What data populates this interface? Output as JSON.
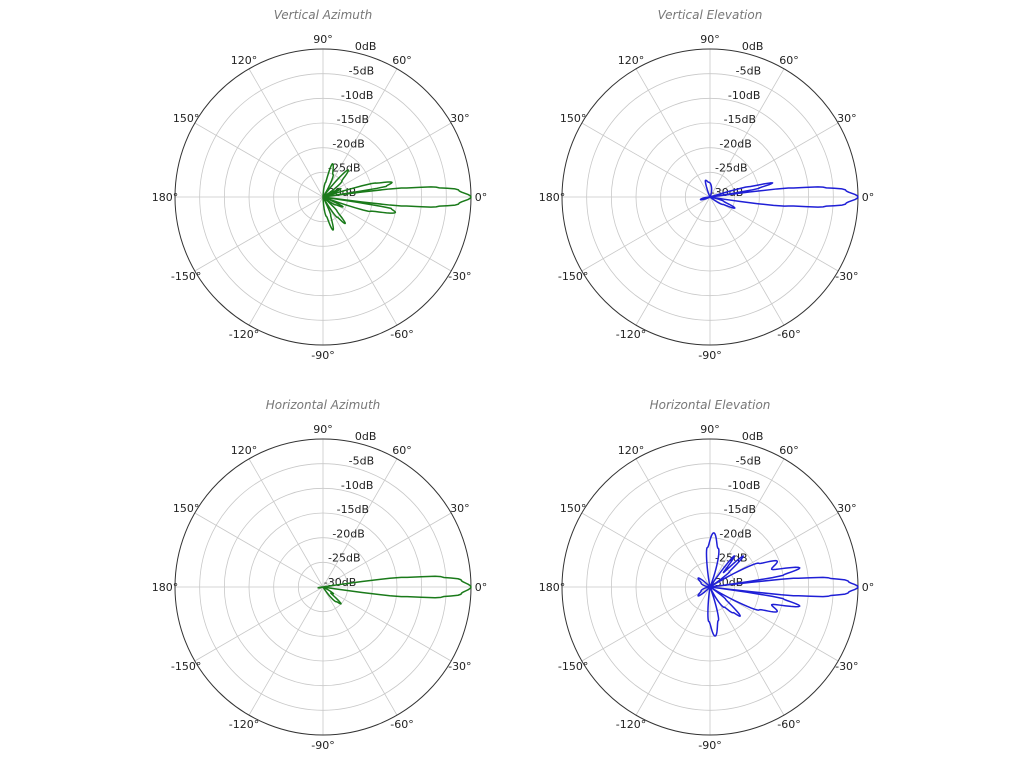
{
  "chart_data": [
    {
      "type": "line",
      "projection": "polar",
      "title": "Vertical Azimuth",
      "color": "#1a7a1a",
      "angle_ticks": [
        "0°",
        "30°",
        "60°",
        "90°",
        "120°",
        "150°",
        "180°",
        "-150°",
        "-120°",
        "-90°",
        "-60°",
        "-30°"
      ],
      "radial_ticks": [
        "0dB",
        "-5dB",
        "-10dB",
        "-15dB",
        "-20dB",
        "-25dB",
        "-30dB"
      ],
      "rlim": [
        -30,
        0
      ],
      "grid": true,
      "points": [
        [
          -90,
          -30
        ],
        [
          -80,
          -26
        ],
        [
          -73,
          -23
        ],
        [
          -67,
          -26
        ],
        [
          -62,
          -30
        ],
        [
          -55,
          -25
        ],
        [
          -50,
          -23
        ],
        [
          -45,
          -26
        ],
        [
          -40,
          -30
        ],
        [
          -32,
          -27
        ],
        [
          -26,
          -25.5
        ],
        [
          -21,
          -30
        ],
        [
          -17,
          -20
        ],
        [
          -12,
          -15
        ],
        [
          -9.5,
          -16
        ],
        [
          -8,
          -30
        ],
        [
          -6.5,
          -14
        ],
        [
          -5,
          -7
        ],
        [
          -3,
          -2.5
        ],
        [
          0,
          0
        ],
        [
          3,
          -2.5
        ],
        [
          5,
          -7
        ],
        [
          6.5,
          -14
        ],
        [
          8,
          -30
        ],
        [
          9.5,
          -17
        ],
        [
          12,
          -15.7
        ],
        [
          15,
          -19
        ],
        [
          18,
          -30
        ],
        [
          25,
          -26
        ],
        [
          30,
          -30
        ],
        [
          40,
          -25
        ],
        [
          47,
          -22.5
        ],
        [
          55,
          -30
        ],
        [
          66,
          -25
        ],
        [
          74,
          -23
        ],
        [
          80,
          -27
        ],
        [
          90,
          -30
        ]
      ]
    },
    {
      "type": "line",
      "projection": "polar",
      "title": "Vertical Elevation",
      "color": "#1f1fd6",
      "angle_ticks": [
        "0°",
        "30°",
        "60°",
        "90°",
        "120°",
        "150°",
        "180°",
        "-150°",
        "-120°",
        "-90°",
        "-60°",
        "-30°"
      ],
      "radial_ticks": [
        "0dB",
        "-5dB",
        "-10dB",
        "-15dB",
        "-20dB",
        "-25dB",
        "-30dB"
      ],
      "rlim": [
        -30,
        0
      ],
      "grid": true,
      "points": [
        [
          -180,
          -30
        ],
        [
          -165,
          -28
        ],
        [
          -150,
          -30
        ],
        [
          -40,
          -30
        ],
        [
          -30,
          -27
        ],
        [
          -24,
          -24.5
        ],
        [
          -18,
          -27
        ],
        [
          -10,
          -30
        ],
        [
          -6.5,
          -14
        ],
        [
          -5,
          -7
        ],
        [
          -3,
          -2.5
        ],
        [
          0,
          0
        ],
        [
          3,
          -2.5
        ],
        [
          5,
          -7
        ],
        [
          6.5,
          -14
        ],
        [
          8,
          -30
        ],
        [
          10,
          -20
        ],
        [
          12.7,
          -17
        ],
        [
          15,
          -22
        ],
        [
          18,
          -30
        ],
        [
          60,
          -30
        ],
        [
          95,
          -27
        ],
        [
          105,
          -26.5
        ],
        [
          115,
          -30
        ]
      ]
    },
    {
      "type": "line",
      "projection": "polar",
      "title": "Horizontal Azimuth",
      "color": "#1a7a1a",
      "angle_ticks": [
        "0°",
        "30°",
        "60°",
        "90°",
        "120°",
        "150°",
        "180°",
        "-150°",
        "-120°",
        "-90°",
        "-60°",
        "-30°"
      ],
      "radial_ticks": [
        "0dB",
        "-5dB",
        "-10dB",
        "-15dB",
        "-20dB",
        "-25dB",
        "-30dB"
      ],
      "rlim": [
        -30,
        0
      ],
      "grid": true,
      "points": [
        [
          -180,
          -30
        ],
        [
          -170,
          -29
        ],
        [
          -160,
          -30
        ],
        [
          -60,
          -30
        ],
        [
          -48,
          -26
        ],
        [
          -43,
          -25
        ],
        [
          -38,
          -28
        ],
        [
          -33,
          -27.5
        ],
        [
          -25,
          -30
        ],
        [
          -9,
          -30
        ],
        [
          -7,
          -14
        ],
        [
          -5,
          -6
        ],
        [
          -3,
          -2
        ],
        [
          0,
          0
        ],
        [
          3,
          -2
        ],
        [
          5,
          -6
        ],
        [
          7,
          -14
        ],
        [
          9,
          -30
        ],
        [
          30,
          -30
        ]
      ]
    },
    {
      "type": "line",
      "projection": "polar",
      "title": "Horizontal Elevation",
      "color": "#1f1fd6",
      "angle_ticks": [
        "0°",
        "30°",
        "60°",
        "90°",
        "120°",
        "150°",
        "180°",
        "-150°",
        "-120°",
        "-90°",
        "-60°",
        "-30°"
      ],
      "radial_ticks": [
        "0dB",
        "-5dB",
        "-10dB",
        "-15dB",
        "-20dB",
        "-25dB",
        "-30dB"
      ],
      "rlim": [
        -30,
        0
      ],
      "grid": true,
      "points": [
        [
          -180,
          -30
        ],
        [
          -155,
          -28
        ],
        [
          -143,
          -27
        ],
        [
          -132,
          -30
        ],
        [
          -100,
          -30
        ],
        [
          -92,
          -23
        ],
        [
          -84,
          -20
        ],
        [
          -76,
          -23
        ],
        [
          -68,
          -30
        ],
        [
          -55,
          -25
        ],
        [
          -48,
          -23
        ],
        [
          -44,
          -21.5
        ],
        [
          -38,
          -26
        ],
        [
          -33,
          -30
        ],
        [
          -25,
          -19
        ],
        [
          -20,
          -15.5
        ],
        [
          -16,
          -17
        ],
        [
          -12,
          -11.4
        ],
        [
          -9,
          -15
        ],
        [
          -7,
          -30
        ],
        [
          -6,
          -13
        ],
        [
          -4.5,
          -6
        ],
        [
          -2.5,
          -2
        ],
        [
          0,
          0
        ],
        [
          2.5,
          -2
        ],
        [
          4.5,
          -6
        ],
        [
          6,
          -13
        ],
        [
          7,
          -30
        ],
        [
          9,
          -15
        ],
        [
          12,
          -11.4
        ],
        [
          16,
          -17
        ],
        [
          21,
          -15.4
        ],
        [
          26,
          -19
        ],
        [
          33,
          -30
        ],
        [
          38,
          -25
        ],
        [
          43,
          -20.8
        ],
        [
          47,
          -26
        ],
        [
          52,
          -22
        ],
        [
          57,
          -30
        ],
        [
          66,
          -30
        ],
        [
          78,
          -22
        ],
        [
          86,
          -19
        ],
        [
          94,
          -22
        ],
        [
          102,
          -30
        ],
        [
          130,
          -30
        ],
        [
          143,
          -27
        ],
        [
          155,
          -28
        ],
        [
          180,
          -30
        ]
      ]
    }
  ]
}
